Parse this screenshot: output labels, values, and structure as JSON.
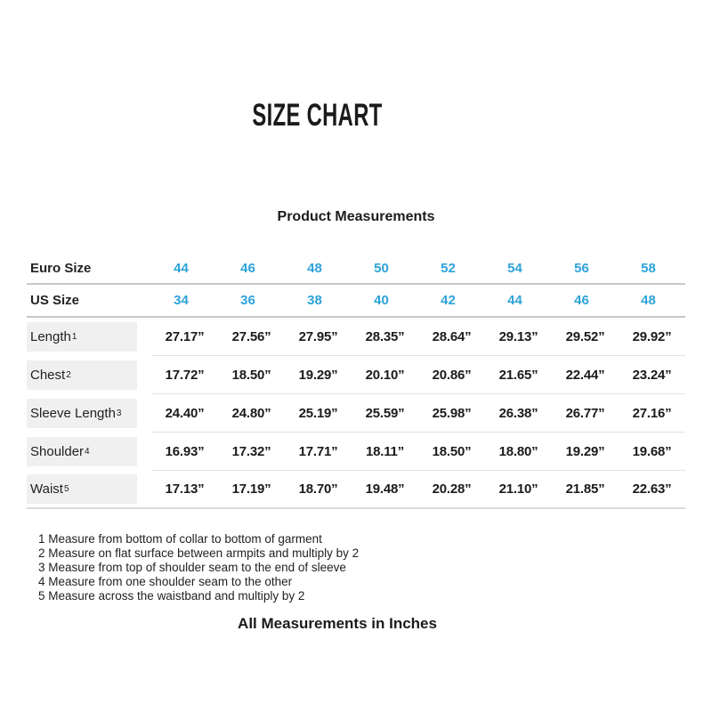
{
  "title": "SIZE CHART",
  "subtitle": "Product Measurements",
  "table": {
    "size_rows": [
      {
        "label": "Euro Size",
        "values": [
          "44",
          "46",
          "48",
          "50",
          "52",
          "54",
          "56",
          "58"
        ]
      },
      {
        "label": "US Size",
        "values": [
          "34",
          "36",
          "38",
          "40",
          "42",
          "44",
          "46",
          "48"
        ]
      }
    ],
    "measurement_rows": [
      {
        "label": "Length",
        "sup": "1",
        "values": [
          "27.17”",
          "27.56”",
          "27.95”",
          "28.35”",
          "28.64”",
          "29.13”",
          "29.52”",
          "29.92”"
        ]
      },
      {
        "label": "Chest",
        "sup": "2",
        "values": [
          "17.72”",
          "18.50”",
          "19.29”",
          "20.10”",
          "20.86”",
          "21.65”",
          "22.44”",
          "23.24”"
        ]
      },
      {
        "label": "Sleeve Length",
        "sup": "3",
        "values": [
          "24.40”",
          "24.80”",
          "25.19”",
          "25.59”",
          "25.98”",
          "26.38”",
          "26.77”",
          "27.16”"
        ]
      },
      {
        "label": "Shoulder",
        "sup": "4",
        "values": [
          "16.93”",
          "17.32”",
          "17.71”",
          "18.11”",
          "18.50”",
          "18.80”",
          "19.29”",
          "19.68”"
        ]
      },
      {
        "label": "Waist",
        "sup": "5",
        "values": [
          "17.13”",
          "17.19”",
          "18.70”",
          "19.48”",
          "20.28”",
          "21.10”",
          "21.85”",
          "22.63”"
        ]
      }
    ]
  },
  "footnotes": [
    "1 Measure from bottom of collar to bottom of garment",
    "2 Measure on flat surface between armpits and multiply by 2",
    "3 Measure from top of shoulder seam to the end of sleeve",
    "4 Measure from one shoulder seam to the other",
    "5 Measure across the waistband and multiply by 2"
  ],
  "footer": "All Measurements in Inches",
  "colors": {
    "accent_blue": "#2ea3d9",
    "label_cell_bg": "#f0f0f0",
    "heavy_rule": "#c8c8c8",
    "light_rule": "#e2e2e2",
    "text": "#1c1c1c"
  }
}
